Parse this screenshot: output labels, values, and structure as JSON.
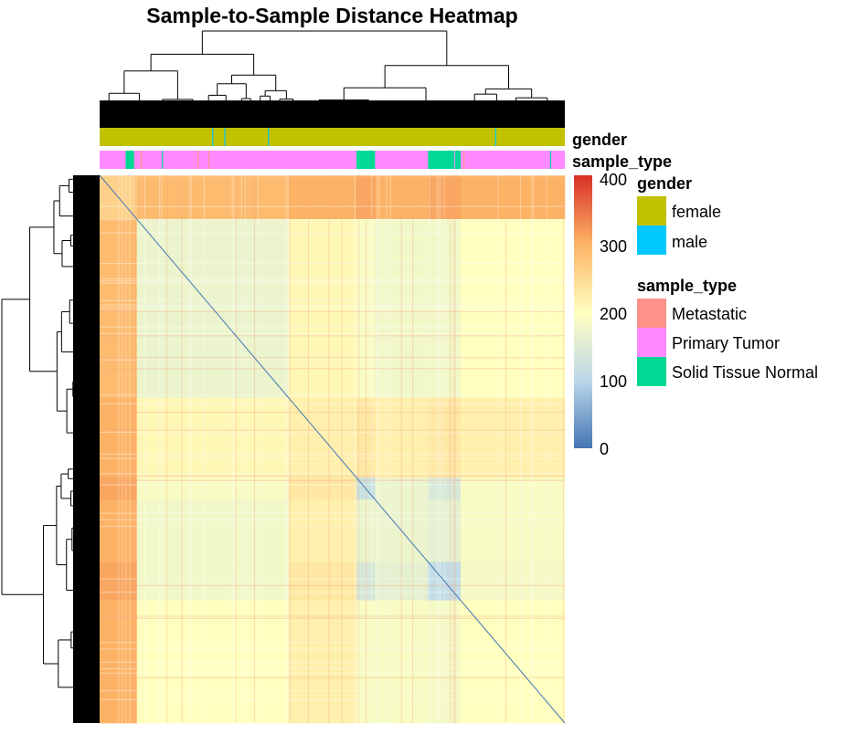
{
  "chart_data": {
    "type": "heatmap",
    "title": "Sample-to-Sample Distance Heatmap",
    "n_samples": 500,
    "row_dendrogram": true,
    "column_dendrogram": true,
    "cluster_groups": [
      {
        "id": "A",
        "start": 0,
        "end": 39
      },
      {
        "id": "B",
        "start": 40,
        "end": 202
      },
      {
        "id": "C",
        "start": 203,
        "end": 275
      },
      {
        "id": "D",
        "start": 276,
        "end": 295
      },
      {
        "id": "E",
        "start": 296,
        "end": 352
      },
      {
        "id": "F",
        "start": 353,
        "end": 387
      },
      {
        "id": "G",
        "start": 388,
        "end": 499
      }
    ],
    "block_mean_distance": [
      [
        260,
        290,
        300,
        310,
        300,
        310,
        300
      ],
      [
        290,
        170,
        210,
        190,
        180,
        180,
        200
      ],
      [
        300,
        210,
        220,
        230,
        220,
        230,
        220
      ],
      [
        310,
        190,
        230,
        120,
        170,
        140,
        190
      ],
      [
        300,
        180,
        220,
        170,
        170,
        160,
        190
      ],
      [
        310,
        180,
        230,
        140,
        160,
        110,
        185
      ],
      [
        300,
        200,
        220,
        190,
        190,
        185,
        200
      ]
    ],
    "diagonal_value": 0,
    "color_scale": {
      "stops": [
        {
          "value": 0,
          "color": "#4575B4"
        },
        {
          "value": 100,
          "color": "#BCD9EA"
        },
        {
          "value": 200,
          "color": "#FFFFBF"
        },
        {
          "value": 300,
          "color": "#FDB366"
        },
        {
          "value": 400,
          "color": "#D73027"
        }
      ],
      "ticks": [
        "400",
        "300",
        "200",
        "100",
        "0"
      ],
      "range": [
        0,
        400
      ]
    },
    "annotations": {
      "gender": {
        "label": "gender",
        "default": "female",
        "others": [
          {
            "value": "male",
            "samples": [
              121,
              134,
              181,
              425
            ]
          }
        ]
      },
      "sample_type": {
        "label": "sample_type",
        "default": "Primary Tumor",
        "ranges": [
          {
            "value": "Solid Tissue Normal",
            "start": 28,
            "end": 36
          },
          {
            "value": "Metastatic",
            "start": 44,
            "end": 44
          },
          {
            "value": "Solid Tissue Normal",
            "start": 67,
            "end": 67
          },
          {
            "value": "Metastatic",
            "start": 105,
            "end": 105
          },
          {
            "value": "Metastatic",
            "start": 117,
            "end": 117
          },
          {
            "value": "Solid Tissue Normal",
            "start": 276,
            "end": 295
          },
          {
            "value": "Solid Tissue Normal",
            "start": 353,
            "end": 380
          },
          {
            "value": "Solid Tissue Normal",
            "start": 382,
            "end": 387
          },
          {
            "value": "Metastatic",
            "start": 391,
            "end": 391
          },
          {
            "value": "Solid Tissue Normal",
            "start": 484,
            "end": 484
          }
        ]
      }
    },
    "legend": {
      "placement": "right",
      "gender": {
        "title": "gender",
        "items": [
          {
            "label": "female",
            "color": "#C1C100"
          },
          {
            "label": "male",
            "color": "#00C8FF"
          }
        ]
      },
      "sample_type": {
        "title": "sample_type",
        "items": [
          {
            "label": "Metastatic",
            "color": "#FF938A"
          },
          {
            "label": "Primary Tumor",
            "color": "#FF8AFF"
          },
          {
            "label": "Solid Tissue Normal",
            "color": "#00D994"
          }
        ]
      }
    }
  }
}
